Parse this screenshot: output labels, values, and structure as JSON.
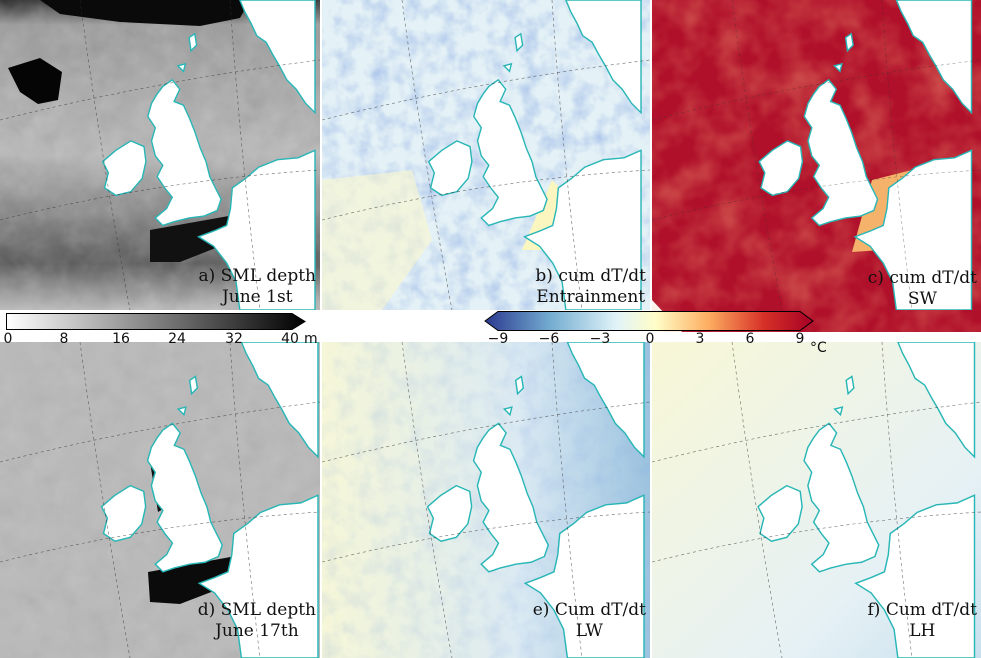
{
  "panels": [
    {
      "id": "a",
      "line1": "a) SML depth",
      "line2": "June 1st"
    },
    {
      "id": "b",
      "line1": "b) cum dT/dt",
      "line2": "Entrainment"
    },
    {
      "id": "c",
      "line1": "c) cum dT/dt",
      "line2": "SW"
    },
    {
      "id": "d",
      "line1": "d) SML depth",
      "line2": "June 17th"
    },
    {
      "id": "e",
      "line1": "e) Cum dT/dt",
      "line2": "LW"
    },
    {
      "id": "f",
      "line1": "f) Cum dT/dt",
      "line2": "LH"
    }
  ],
  "colorbar_depth": {
    "ticks": [
      "0",
      "8",
      "16",
      "24",
      "32",
      "40"
    ],
    "unit": "m",
    "colors": [
      "#ffffff",
      "#000000"
    ]
  },
  "colorbar_temp": {
    "ticks": [
      "−9",
      "−6",
      "−3",
      "0",
      "3",
      "6",
      "9"
    ],
    "unit": "°C",
    "colors": [
      "#2b3990",
      "#74add1",
      "#e0f3f8",
      "#fffec8",
      "#fdae61",
      "#d73027",
      "#a50026"
    ]
  },
  "colors": {
    "coastline": "#29b6b6",
    "land": "#ffffff"
  }
}
